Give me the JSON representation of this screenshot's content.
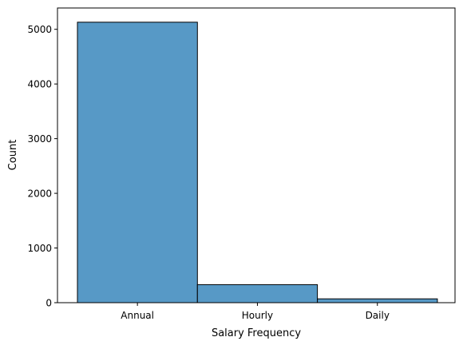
{
  "chart_data": {
    "type": "bar",
    "categories": [
      "Annual",
      "Hourly",
      "Daily"
    ],
    "values": [
      5130,
      330,
      70
    ],
    "xlabel": "Salary Frequency",
    "ylabel": "Count",
    "ylim": [
      0,
      5390
    ],
    "yticks": [
      0,
      1000,
      2000,
      3000,
      4000,
      5000
    ],
    "grid": false,
    "bar_color": "#5799c6",
    "edge_color": "#000000"
  }
}
